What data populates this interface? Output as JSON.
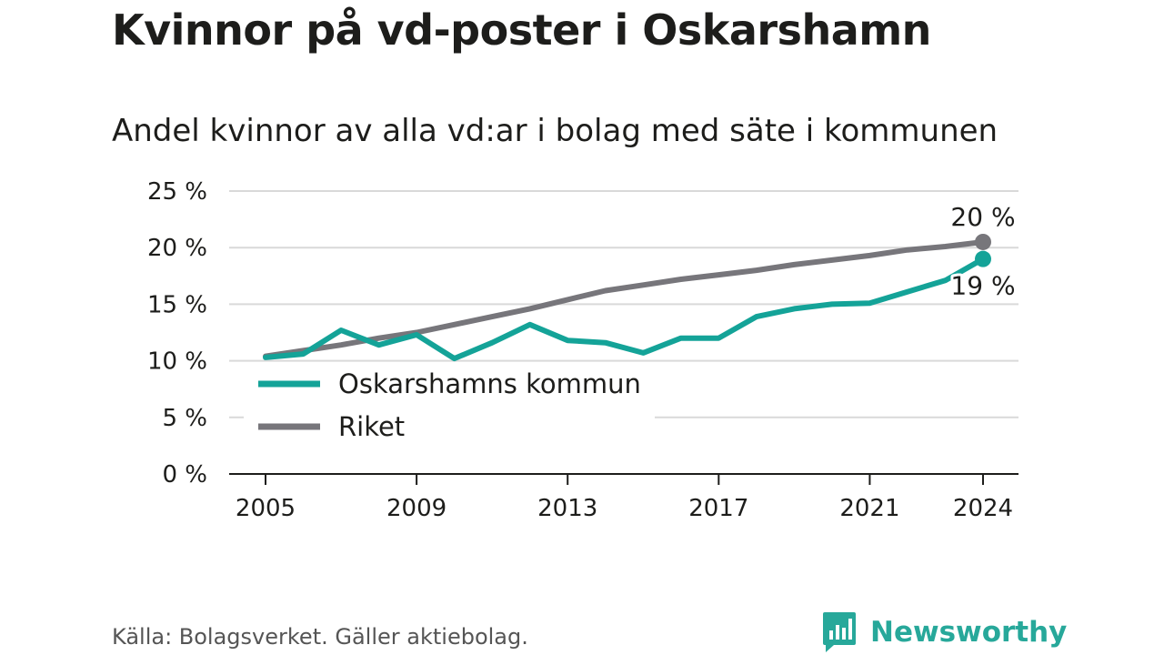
{
  "title": "Kvinnor på vd-poster i Oskarshamn",
  "subtitle": "Andel kvinnor av alla vd:ar i bolag med säte i kommunen",
  "source": "Källa: Bolagsverket. Gäller aktiebolag.",
  "brand": "Newsworthy",
  "colors": {
    "kommun": "#14a398",
    "riket": "#77767b",
    "grid": "#d9d9d9",
    "brand": "#27a89a"
  },
  "chart_data": {
    "type": "line",
    "title": "Kvinnor på vd-poster i Oskarshamn",
    "subtitle": "Andel kvinnor av alla vd:ar i bolag med säte i kommunen",
    "x": [
      2005,
      2006,
      2007,
      2008,
      2009,
      2010,
      2011,
      2012,
      2013,
      2014,
      2015,
      2016,
      2017,
      2018,
      2019,
      2020,
      2021,
      2022,
      2023,
      2024
    ],
    "x_ticks": [
      2005,
      2009,
      2013,
      2017,
      2021,
      2024
    ],
    "x_tick_labels": [
      "2005",
      "2009",
      "2013",
      "2017",
      "2021",
      "2024"
    ],
    "y_ticks": [
      0,
      5,
      10,
      15,
      20,
      25
    ],
    "y_tick_labels": [
      "0 %",
      "5 %",
      "10 %",
      "15 %",
      "20 %",
      "25 %"
    ],
    "ylim": [
      0,
      25
    ],
    "xlim": [
      2005,
      2024
    ],
    "grid": true,
    "legend_position": "bottom-left",
    "series": [
      {
        "name": "Oskarshamns kommun",
        "color": "#14a398",
        "values": [
          10.3,
          10.6,
          12.7,
          11.4,
          12.3,
          10.2,
          11.6,
          13.2,
          11.8,
          11.6,
          10.7,
          12.0,
          12.0,
          13.9,
          14.6,
          15.0,
          15.1,
          16.1,
          17.1,
          19.0
        ],
        "end_label": "19 %"
      },
      {
        "name": "Riket",
        "color": "#77767b",
        "values": [
          10.4,
          10.9,
          11.4,
          12.0,
          12.5,
          13.2,
          13.9,
          14.6,
          15.4,
          16.2,
          16.7,
          17.2,
          17.6,
          18.0,
          18.5,
          18.9,
          19.3,
          19.8,
          20.1,
          20.5
        ],
        "end_label": "20 %"
      }
    ]
  }
}
